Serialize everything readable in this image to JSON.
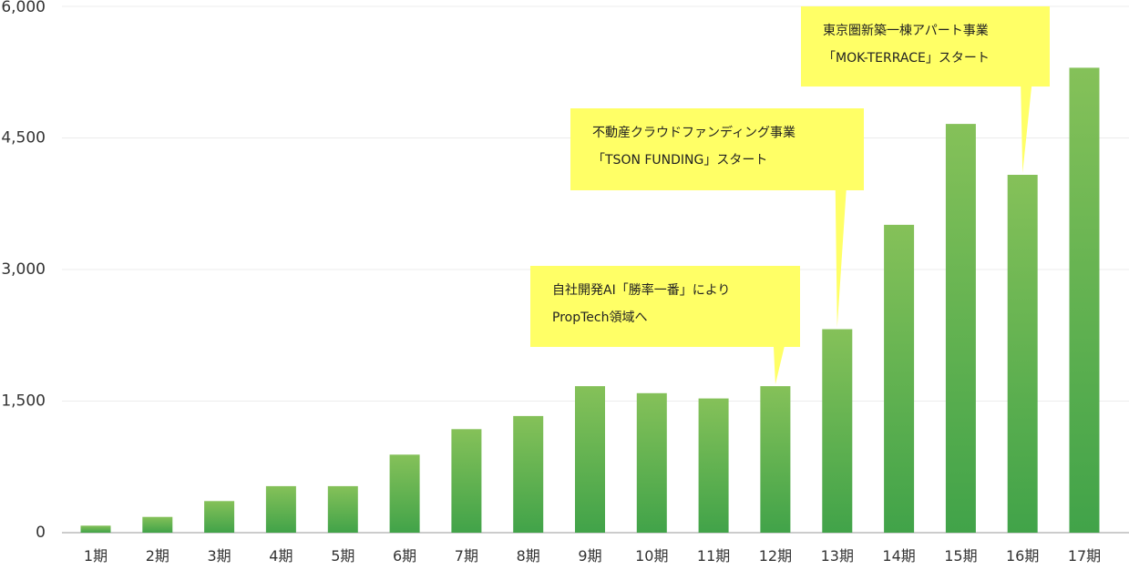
{
  "chart_data": {
    "type": "bar",
    "categories": [
      "1期",
      "2期",
      "3期",
      "4期",
      "5期",
      "6期",
      "7期",
      "8期",
      "9期",
      "10期",
      "11期",
      "12期",
      "13期",
      "14期",
      "15期",
      "16期",
      "17期"
    ],
    "values": [
      80,
      180,
      360,
      530,
      530,
      890,
      1180,
      1330,
      1670,
      1590,
      1530,
      1670,
      2320,
      3510,
      4660,
      4080,
      5300
    ],
    "title": "",
    "xlabel": "",
    "ylabel": "",
    "ylim": [
      0,
      6000
    ],
    "yticks": [
      0,
      1500,
      3000,
      4500,
      6000
    ],
    "ytick_labels": [
      "0",
      "1,500",
      "3,000",
      "4,500",
      "6,000"
    ],
    "grid": true,
    "colors": {
      "bar_top": "#85c159",
      "bar_bottom": "#41a349",
      "callout_bg": "#ffff66"
    },
    "annotations": [
      {
        "category": "12期",
        "lines": [
          "自社開発AI「勝率一番」により",
          "PropTech領域へ"
        ]
      },
      {
        "category": "13期",
        "lines": [
          "不動産クラウドファンディング事業",
          "「TSON FUNDING」スタート"
        ]
      },
      {
        "category": "16期",
        "lines": [
          "東京圏新築一棟アパート事業",
          "「MOK-TERRACE」スタート"
        ]
      }
    ]
  }
}
